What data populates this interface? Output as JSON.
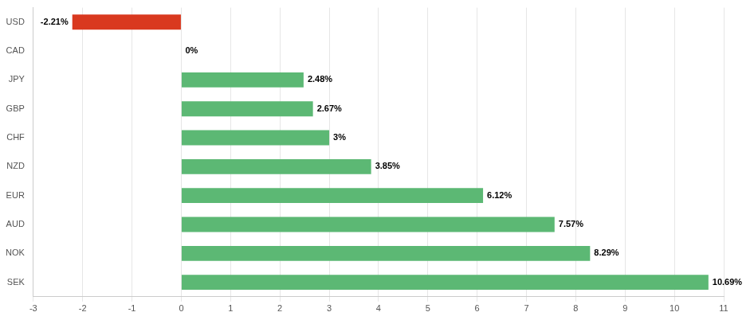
{
  "chart_data": {
    "type": "bar",
    "orientation": "horizontal",
    "categories": [
      "USD",
      "CAD",
      "JPY",
      "GBP",
      "CHF",
      "NZD",
      "EUR",
      "AUD",
      "NOK",
      "SEK"
    ],
    "values": [
      -2.21,
      0,
      2.48,
      2.67,
      3,
      3.85,
      6.12,
      7.57,
      8.29,
      10.69
    ],
    "value_labels": [
      "-2.21%",
      "0%",
      "2.48%",
      "2.67%",
      "3%",
      "3.85%",
      "6.12%",
      "7.57%",
      "8.29%",
      "10.69%"
    ],
    "colors": [
      "#d9391f",
      "#5cb874",
      "#5cb874",
      "#5cb874",
      "#5cb874",
      "#5cb874",
      "#5cb874",
      "#5cb874",
      "#5cb874",
      "#5cb874"
    ],
    "xlim": [
      -3,
      11
    ],
    "xticks": [
      -3,
      -2,
      -1,
      0,
      1,
      2,
      3,
      4,
      5,
      6,
      7,
      8,
      9,
      10,
      11
    ],
    "grid": true,
    "data_labels": true
  }
}
